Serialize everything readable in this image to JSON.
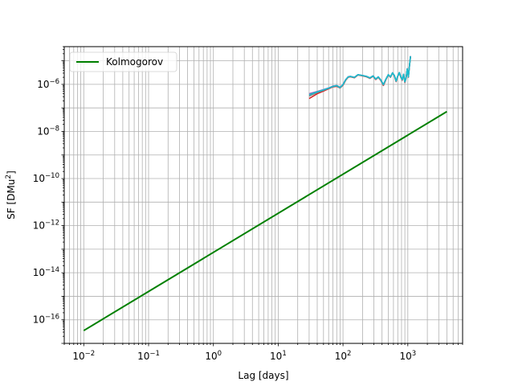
{
  "chart_data": {
    "type": "line",
    "title": "",
    "xlabel": "Lag [days]",
    "ylabel": "SF [DMu",
    "ylabel_sup": "2",
    "ylabel_end": "]",
    "xscale": "log",
    "yscale": "log",
    "xlim": [
      0.005,
      7000
    ],
    "ylim": [
      1e-17,
      4e-05
    ],
    "grid": "on (major and minor)",
    "legend_position": "upper-left",
    "x_ticks": [
      {
        "value": 0.01,
        "base": "10",
        "exp": "−2"
      },
      {
        "value": 0.1,
        "base": "10",
        "exp": "−1"
      },
      {
        "value": 1,
        "base": "10",
        "exp": "0"
      },
      {
        "value": 10,
        "base": "10",
        "exp": "1"
      },
      {
        "value": 100,
        "base": "10",
        "exp": "2"
      },
      {
        "value": 1000,
        "base": "10",
        "exp": "3"
      }
    ],
    "y_ticks": [
      {
        "value": 1e-16,
        "base": "10",
        "exp": "−16"
      },
      {
        "value": 1e-14,
        "base": "10",
        "exp": "−14"
      },
      {
        "value": 1e-12,
        "base": "10",
        "exp": "−12"
      },
      {
        "value": 1e-10,
        "base": "10",
        "exp": "−10"
      },
      {
        "value": 1e-08,
        "base": "10",
        "exp": "−8"
      },
      {
        "value": 1e-06,
        "base": "10",
        "exp": "−6"
      }
    ],
    "series": [
      {
        "name": "Kolmogorov",
        "color": "#008000",
        "in_legend": true,
        "x": [
          0.01,
          4000
        ],
        "y": [
          3.5e-17,
          7e-08
        ]
      },
      {
        "color": "#d62728",
        "in_legend": false,
        "x": [
          30,
          40,
          50,
          60,
          70,
          80,
          90,
          100,
          110,
          120,
          130,
          150,
          170,
          200,
          230,
          260,
          290,
          320,
          350,
          380,
          420,
          460,
          500,
          540,
          580,
          620,
          660,
          700,
          740,
          780,
          820,
          860,
          900,
          940,
          980,
          1020,
          1060,
          1100
        ],
        "y": [
          2.5e-07,
          4e-07,
          5.2e-07,
          6.5e-07,
          7.8e-07,
          8.3e-07,
          7e-07,
          9.2e-07,
          1.5e-06,
          2e-06,
          2.1e-06,
          1.9e-06,
          2.5e-06,
          2.3e-06,
          2.1e-06,
          1.8e-06,
          2.2e-06,
          1.6e-06,
          2e-06,
          1.5e-06,
          9e-07,
          1.6e-06,
          2.5e-06,
          2e-06,
          3e-06,
          2.3e-06,
          1.3e-06,
          2.2e-06,
          3.1e-06,
          2e-06,
          1.5e-06,
          2.6e-06,
          1.2e-06,
          1.8e-06,
          4.5e-06,
          2e-06,
          6e-06,
          1.5e-05
        ]
      },
      {
        "color": "#9467bd",
        "in_legend": false,
        "x": [
          30,
          40,
          50,
          60,
          70,
          80,
          90,
          100,
          110,
          120,
          130,
          150,
          170,
          200,
          230,
          260,
          290,
          320,
          350,
          380,
          420,
          460,
          500,
          540,
          580,
          620,
          660,
          700,
          740,
          780,
          820,
          860,
          900,
          940,
          980,
          1020,
          1060,
          1100
        ],
        "y": [
          4e-07,
          5e-07,
          6e-07,
          7e-07,
          8.5e-07,
          9e-07,
          7.5e-07,
          1e-06,
          1.6e-06,
          2.1e-06,
          2.2e-06,
          2e-06,
          2.6e-06,
          2.4e-06,
          2.2e-06,
          1.9e-06,
          2.3e-06,
          1.7e-06,
          2.1e-06,
          1.6e-06,
          1e-06,
          1.7e-06,
          2.6e-06,
          2.1e-06,
          3.1e-06,
          2.4e-06,
          1.4e-06,
          2.3e-06,
          3.2e-06,
          2.1e-06,
          1.6e-06,
          2.7e-06,
          1.3e-06,
          1.9e-06,
          4.6e-06,
          2.1e-06,
          6.2e-06,
          1.6e-05
        ]
      },
      {
        "color": "#7f7f7f",
        "in_legend": false,
        "x": [
          30,
          40,
          50,
          60,
          70,
          80,
          90,
          100,
          110,
          120,
          130,
          150,
          170,
          200,
          230,
          260,
          290,
          320,
          350,
          380,
          420,
          460,
          500,
          540,
          580,
          620,
          660,
          700,
          740,
          780,
          820,
          860,
          900,
          940,
          980,
          1020,
          1060,
          1100
        ],
        "y": [
          3.2e-07,
          4.5e-07,
          5.6e-07,
          6.8e-07,
          8.1e-07,
          8.7e-07,
          7.2e-07,
          9.6e-07,
          1.55e-06,
          2.05e-06,
          2.15e-06,
          1.95e-06,
          2.55e-06,
          2.35e-06,
          2.15e-06,
          1.85e-06,
          2.25e-06,
          1.65e-06,
          2.05e-06,
          1.55e-06,
          9.5e-07,
          1.65e-06,
          2.55e-06,
          2.05e-06,
          3.05e-06,
          2.35e-06,
          1.35e-06,
          2.25e-06,
          3.15e-06,
          2.05e-06,
          1.55e-06,
          2.65e-06,
          1.25e-06,
          1.85e-06,
          4.55e-06,
          2.05e-06,
          6.1e-06,
          1.55e-05
        ]
      },
      {
        "color": "#17becf",
        "in_legend": false,
        "x": [
          30,
          40,
          50,
          60,
          70,
          80,
          90,
          100,
          110,
          120,
          130,
          150,
          170,
          200,
          230,
          260,
          290,
          320,
          350,
          380,
          420,
          460,
          500,
          540,
          580,
          620,
          660,
          700,
          740,
          780,
          820,
          860,
          900,
          940,
          980,
          1020,
          1060,
          1100
        ],
        "y": [
          3.6e-07,
          4.8e-07,
          5.8e-07,
          6.9e-07,
          8.2e-07,
          8.9e-07,
          7.3e-07,
          9.8e-07,
          1.58e-06,
          2.08e-06,
          2.18e-06,
          1.98e-06,
          2.58e-06,
          2.38e-06,
          2.18e-06,
          1.88e-06,
          2.28e-06,
          1.68e-06,
          2.08e-06,
          1.58e-06,
          9.8e-07,
          1.68e-06,
          2.58e-06,
          2.08e-06,
          3.08e-06,
          2.38e-06,
          1.38e-06,
          2.28e-06,
          3.18e-06,
          2.08e-06,
          1.58e-06,
          2.68e-06,
          1.28e-06,
          1.88e-06,
          4.58e-06,
          2.08e-06,
          6.15e-06,
          1.58e-05
        ]
      }
    ]
  }
}
